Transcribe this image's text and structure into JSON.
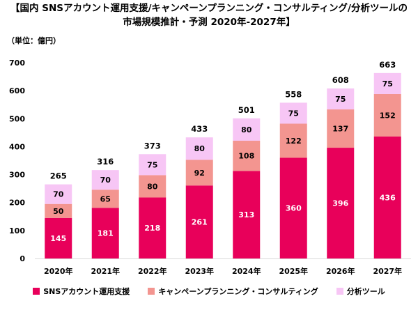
{
  "title_line1": "【国内 SNSアカウント運用支援/キャンペーンプランニング・コンサルティング/分析ツールの",
  "title_line2": "市場規模推計・予測 2020年-2027年】",
  "unit": "（単位：億円）",
  "colors": {
    "series1": "#e8005a",
    "series2": "#f39590",
    "series3": "#f7c6f5"
  },
  "chart_data": {
    "type": "bar",
    "stacked": true,
    "categories": [
      "2020年",
      "2021年",
      "2022年",
      "2023年",
      "2024年",
      "2025年",
      "2026年",
      "2027年"
    ],
    "series": [
      {
        "name": "SNSアカウント運用支援",
        "values": [
          145,
          181,
          218,
          261,
          313,
          360,
          396,
          436
        ]
      },
      {
        "name": "キャンペーンプランニング・コンサルティング",
        "values": [
          50,
          65,
          80,
          92,
          108,
          122,
          137,
          152
        ]
      },
      {
        "name": "分析ツール",
        "values": [
          70,
          70,
          75,
          80,
          80,
          75,
          75,
          75
        ]
      }
    ],
    "totals": [
      265,
      316,
      373,
      433,
      501,
      558,
      608,
      663
    ],
    "ylim": [
      0,
      700
    ],
    "yticks": [
      0,
      100,
      200,
      300,
      400,
      500,
      600,
      700
    ],
    "grid": false,
    "legend_position": "bottom"
  }
}
